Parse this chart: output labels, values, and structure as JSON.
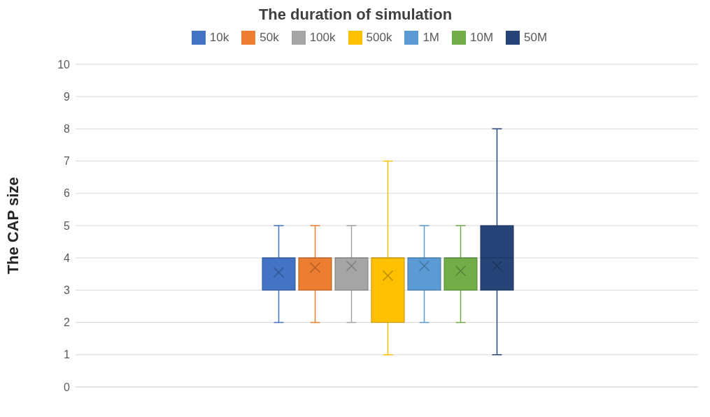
{
  "chart_data": {
    "type": "box",
    "title": "The duration of simulation",
    "ylabel": "The CAP size",
    "categories": [
      null
    ],
    "series": [
      {
        "name": "10k",
        "color": "#4472c4",
        "boxes": [
          {
            "low": 2,
            "q1": 3,
            "median": 4,
            "q3": 4,
            "high": 5,
            "mean": 3.55
          }
        ]
      },
      {
        "name": "50k",
        "color": "#ed7d31",
        "boxes": [
          {
            "low": 2,
            "q1": 3,
            "median": 4,
            "q3": 4,
            "high": 5,
            "mean": 3.7
          }
        ]
      },
      {
        "name": "100k",
        "color": "#a5a5a5",
        "boxes": [
          {
            "low": 2,
            "q1": 3,
            "median": 4,
            "q3": 4,
            "high": 5,
            "mean": 3.75
          }
        ]
      },
      {
        "name": "500k",
        "color": "#ffc000",
        "boxes": [
          {
            "low": 1,
            "q1": 2,
            "median": 4,
            "q3": 4,
            "high": 7,
            "mean": 3.45
          }
        ]
      },
      {
        "name": "1M",
        "color": "#5b9bd5",
        "boxes": [
          {
            "low": 2,
            "q1": 3,
            "median": 4,
            "q3": 4,
            "high": 5,
            "mean": 3.75
          }
        ]
      },
      {
        "name": "10M",
        "color": "#70ad47",
        "boxes": [
          {
            "low": 2,
            "q1": 3,
            "median": 4,
            "q3": 4,
            "high": 5,
            "mean": 3.6
          }
        ]
      },
      {
        "name": "50M",
        "color": "#264478",
        "boxes": [
          {
            "low": 1,
            "q1": 3,
            "median": 4,
            "q3": 5,
            "high": 8,
            "mean": 3.75
          }
        ]
      }
    ],
    "ylim": [
      0,
      10
    ],
    "yticks": [
      0,
      1,
      2,
      3,
      4,
      5,
      6,
      7,
      8,
      9,
      10
    ],
    "grid": "y",
    "legend": "top",
    "marker": "cross"
  }
}
